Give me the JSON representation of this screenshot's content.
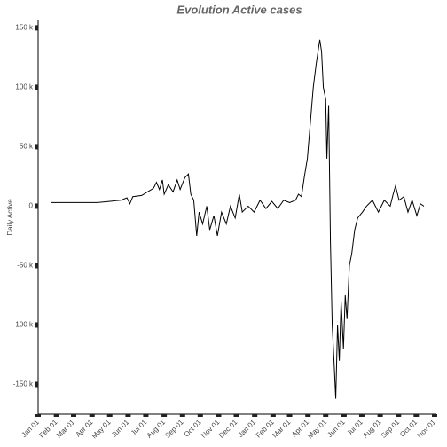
{
  "chart_data": {
    "type": "line",
    "title": "Evolution Active cases",
    "ylabel": "Daily Active",
    "x": [
      22,
      60,
      100,
      120,
      140,
      150,
      155,
      160,
      175,
      185,
      195,
      200,
      205,
      210,
      213,
      220,
      228,
      235,
      240,
      248,
      254,
      258,
      263,
      268,
      272,
      278,
      285,
      290,
      297,
      303,
      310,
      318,
      325,
      333,
      340,
      345,
      355,
      365,
      375,
      385,
      395,
      405,
      415,
      425,
      435,
      440,
      445,
      450,
      455,
      460,
      465,
      470,
      476,
      479,
      482,
      486,
      488,
      491,
      494,
      497,
      500,
      503,
      506,
      509,
      512,
      516,
      519,
      522,
      526,
      530,
      535,
      540,
      548,
      555,
      565,
      575,
      585,
      595,
      600,
      604,
      610,
      618,
      625,
      632,
      640,
      646,
      652
    ],
    "series": [
      {
        "name": "Daily Active",
        "color": "#000000",
        "values": [
          3000,
          3000,
          3000,
          4000,
          5000,
          7000,
          2000,
          8000,
          9000,
          12000,
          15000,
          20000,
          14000,
          22000,
          10000,
          18000,
          12000,
          22000,
          14000,
          24000,
          27000,
          10000,
          5000,
          -25000,
          -5000,
          -15000,
          0,
          -20000,
          -8000,
          -25000,
          -5000,
          -15000,
          0,
          -10000,
          10000,
          -5000,
          0,
          -5000,
          5000,
          -2000,
          4000,
          -2000,
          5000,
          3000,
          5000,
          10000,
          8000,
          25000,
          40000,
          70000,
          100000,
          120000,
          140000,
          130000,
          100000,
          90000,
          40000,
          85000,
          -30000,
          -100000,
          -130000,
          -162000,
          -100000,
          -130000,
          -80000,
          -120000,
          -75000,
          -95000,
          -50000,
          -40000,
          -20000,
          -10000,
          -5000,
          0,
          5000,
          -5000,
          5000,
          0,
          10000,
          17000,
          5000,
          8000,
          -5000,
          5000,
          -8000,
          2000,
          0
        ]
      }
    ],
    "xlim": [
      0,
      670
    ],
    "xticks": [
      {
        "value": 0,
        "label": "Jan 01"
      },
      {
        "value": 31,
        "label": "Feb 01"
      },
      {
        "value": 60,
        "label": "Mar 01"
      },
      {
        "value": 91,
        "label": "Apr 01"
      },
      {
        "value": 121,
        "label": "May 01"
      },
      {
        "value": 152,
        "label": "Jun 01"
      },
      {
        "value": 182,
        "label": "Jul 01"
      },
      {
        "value": 213,
        "label": "Aug 01"
      },
      {
        "value": 244,
        "label": "Sep 01"
      },
      {
        "value": 274,
        "label": "Oct 01"
      },
      {
        "value": 305,
        "label": "Nov 01"
      },
      {
        "value": 335,
        "label": "Dec 01"
      },
      {
        "value": 366,
        "label": "Jan 01"
      },
      {
        "value": 397,
        "label": "Feb 01"
      },
      {
        "value": 425,
        "label": "Mar 01"
      },
      {
        "value": 456,
        "label": "Apr 01"
      },
      {
        "value": 486,
        "label": "May 01"
      },
      {
        "value": 517,
        "label": "Jun 01"
      },
      {
        "value": 547,
        "label": "Jul 01"
      },
      {
        "value": 578,
        "label": "Aug 01"
      },
      {
        "value": 609,
        "label": "Sep 01"
      },
      {
        "value": 639,
        "label": "Oct 01"
      },
      {
        "value": 670,
        "label": "Nov 01"
      }
    ],
    "ylim": [
      -175000,
      157000
    ],
    "yticks": [
      {
        "value": 150000,
        "label": "150 k"
      },
      {
        "value": 100000,
        "label": "100 k"
      },
      {
        "value": 50000,
        "label": "50 k"
      },
      0,
      {
        "value": -50000,
        "label": "-50 k"
      },
      {
        "value": -100000,
        "label": "-100 k"
      },
      {
        "value": -150000,
        "label": "-150 k"
      }
    ]
  }
}
